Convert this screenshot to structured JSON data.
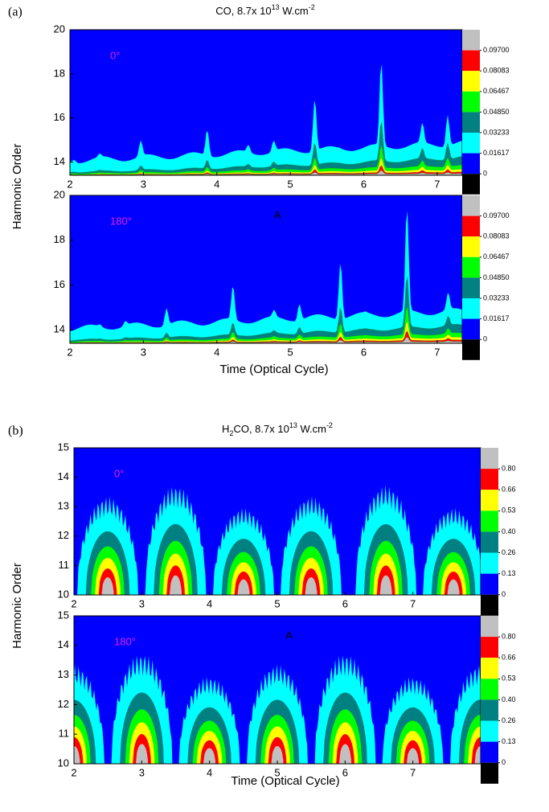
{
  "chart_data": [
    {
      "type": "contour",
      "panel_label": "(a)",
      "title": {
        "text": "CO, 8.7x 10",
        "exponent": "13",
        "unit": " W.cm",
        "unit_exponent": "-2"
      },
      "y_label": "Harmonic Order",
      "x_label": "Time (Optical Cycle)",
      "xlim": [
        2,
        7.34
      ],
      "xticks": [
        2,
        3,
        4,
        5,
        6,
        7
      ],
      "ylim": [
        13.4,
        20
      ],
      "yticks": [
        14,
        16,
        18,
        20
      ],
      "panels": [
        {
          "annotation": "0°"
        },
        {
          "annotation": "180°",
          "marker": "A"
        }
      ],
      "colorbar": {
        "colors": [
          "#c0c0c0",
          "#ff0000",
          "#ffff00",
          "#00ff00",
          "#008080",
          "#00ffff",
          "#0000ff",
          "#000000"
        ],
        "ticks": [
          {
            "value": 0.097,
            "label": "0.09700"
          },
          {
            "value": 0.08083,
            "label": "0.08083"
          },
          {
            "value": 0.06467,
            "label": "0.06467"
          },
          {
            "value": 0.0485,
            "label": "0.04850"
          },
          {
            "value": 0.03233,
            "label": "0.03233"
          },
          {
            "value": 0.01617,
            "label": "0.01617"
          },
          0
        ]
      }
    },
    {
      "type": "contour",
      "panel_label": "(b)",
      "title": {
        "text": "H",
        "subscript": "2",
        "text2": "CO, 8.7x 10",
        "exponent": "13",
        "unit": " W.cm",
        "unit_exponent": "-2"
      },
      "y_label": "Harmonic Order",
      "x_label": "Time (Optical Cycle)",
      "xlim": [
        2,
        8
      ],
      "xticks": [
        2,
        3,
        4,
        5,
        6,
        7
      ],
      "ylim": [
        10,
        15
      ],
      "yticks": [
        10,
        11,
        12,
        13,
        14,
        15
      ],
      "panels": [
        {
          "annotation": "0°"
        },
        {
          "annotation": "180°",
          "marker": "A"
        }
      ],
      "colorbar": {
        "colors": [
          "#c0c0c0",
          "#ff0000",
          "#ffff00",
          "#00ff00",
          "#008080",
          "#00ffff",
          "#0000ff",
          "#000000"
        ],
        "ticks": [
          {
            "value": 0.8,
            "label": "0.80"
          },
          0.66,
          0.53,
          {
            "value": 0.4,
            "label": "0.40"
          },
          0.26,
          0.13,
          0
        ]
      }
    }
  ]
}
